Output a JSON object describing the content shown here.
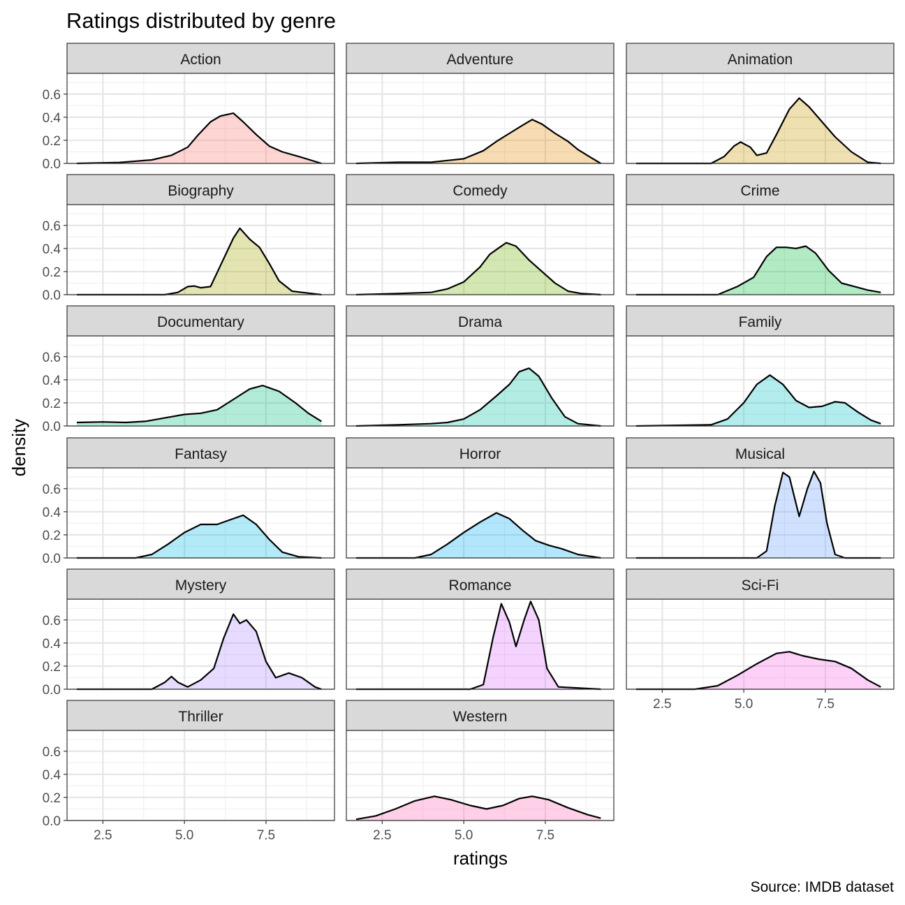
{
  "chart_data": {
    "type": "area",
    "title": "Ratings distributed by genre",
    "xlabel": "ratings",
    "ylabel": "density",
    "caption": "Source: IMDB dataset",
    "xlim": [
      1.4,
      9.6
    ],
    "ylim": [
      0,
      0.78
    ],
    "x_ticks": [
      2.5,
      5.0,
      7.5
    ],
    "x_tick_labels": [
      "2.5",
      "5.0",
      "7.5"
    ],
    "y_ticks": [
      0.0,
      0.2,
      0.4,
      0.6
    ],
    "y_tick_labels": [
      "0.0",
      "0.2",
      "0.4",
      "0.6"
    ],
    "grid": true,
    "facets": [
      {
        "label": "Action",
        "fill": "#F8766D",
        "points": [
          [
            1.7,
            0.0
          ],
          [
            3.0,
            0.008
          ],
          [
            4.0,
            0.03
          ],
          [
            4.6,
            0.07
          ],
          [
            5.1,
            0.14
          ],
          [
            5.4,
            0.24
          ],
          [
            5.8,
            0.36
          ],
          [
            6.1,
            0.41
          ],
          [
            6.5,
            0.435
          ],
          [
            6.8,
            0.36
          ],
          [
            7.2,
            0.25
          ],
          [
            7.6,
            0.15
          ],
          [
            8.0,
            0.1
          ],
          [
            8.5,
            0.06
          ],
          [
            9.2,
            0.0
          ]
        ]
      },
      {
        "label": "Adventure",
        "fill": "#E58700",
        "points": [
          [
            1.7,
            0.0
          ],
          [
            3.0,
            0.01
          ],
          [
            4.0,
            0.01
          ],
          [
            5.0,
            0.04
          ],
          [
            5.6,
            0.11
          ],
          [
            6.0,
            0.19
          ],
          [
            6.4,
            0.26
          ],
          [
            6.8,
            0.33
          ],
          [
            7.1,
            0.38
          ],
          [
            7.4,
            0.34
          ],
          [
            7.8,
            0.26
          ],
          [
            8.2,
            0.19
          ],
          [
            8.5,
            0.12
          ],
          [
            8.9,
            0.05
          ],
          [
            9.2,
            0.0
          ]
        ]
      },
      {
        "label": "Animation",
        "fill": "#C99800",
        "points": [
          [
            1.7,
            0.0
          ],
          [
            4.0,
            0.0
          ],
          [
            4.4,
            0.06
          ],
          [
            4.7,
            0.15
          ],
          [
            4.9,
            0.185
          ],
          [
            5.2,
            0.14
          ],
          [
            5.4,
            0.07
          ],
          [
            5.7,
            0.09
          ],
          [
            6.0,
            0.25
          ],
          [
            6.4,
            0.47
          ],
          [
            6.7,
            0.565
          ],
          [
            7.0,
            0.49
          ],
          [
            7.4,
            0.36
          ],
          [
            7.8,
            0.23
          ],
          [
            8.3,
            0.1
          ],
          [
            8.8,
            0.01
          ],
          [
            9.2,
            0.0
          ]
        ]
      },
      {
        "label": "Biography",
        "fill": "#A3A500",
        "points": [
          [
            1.7,
            0.0
          ],
          [
            4.4,
            0.0
          ],
          [
            4.8,
            0.02
          ],
          [
            5.1,
            0.07
          ],
          [
            5.3,
            0.075
          ],
          [
            5.5,
            0.06
          ],
          [
            5.8,
            0.07
          ],
          [
            6.1,
            0.25
          ],
          [
            6.5,
            0.49
          ],
          [
            6.7,
            0.575
          ],
          [
            7.0,
            0.48
          ],
          [
            7.3,
            0.41
          ],
          [
            7.6,
            0.27
          ],
          [
            7.9,
            0.12
          ],
          [
            8.3,
            0.03
          ],
          [
            8.6,
            0.02
          ],
          [
            9.2,
            0.0
          ]
        ]
      },
      {
        "label": "Comedy",
        "fill": "#6BB100",
        "points": [
          [
            1.7,
            0.0
          ],
          [
            3.0,
            0.01
          ],
          [
            4.0,
            0.02
          ],
          [
            4.5,
            0.05
          ],
          [
            5.0,
            0.11
          ],
          [
            5.5,
            0.24
          ],
          [
            5.8,
            0.35
          ],
          [
            6.1,
            0.41
          ],
          [
            6.3,
            0.45
          ],
          [
            6.6,
            0.42
          ],
          [
            7.0,
            0.3
          ],
          [
            7.4,
            0.2
          ],
          [
            7.8,
            0.1
          ],
          [
            8.2,
            0.03
          ],
          [
            8.6,
            0.01
          ],
          [
            9.2,
            0.0
          ]
        ]
      },
      {
        "label": "Crime",
        "fill": "#00BA38",
        "points": [
          [
            1.7,
            0.0
          ],
          [
            4.2,
            0.0
          ],
          [
            4.8,
            0.07
          ],
          [
            5.3,
            0.15
          ],
          [
            5.7,
            0.33
          ],
          [
            6.0,
            0.41
          ],
          [
            6.3,
            0.41
          ],
          [
            6.6,
            0.4
          ],
          [
            6.9,
            0.42
          ],
          [
            7.2,
            0.36
          ],
          [
            7.6,
            0.21
          ],
          [
            8.0,
            0.1
          ],
          [
            8.4,
            0.07
          ],
          [
            8.8,
            0.04
          ],
          [
            9.2,
            0.02
          ]
        ]
      },
      {
        "label": "Documentary",
        "fill": "#00BF7D",
        "points": [
          [
            1.7,
            0.03
          ],
          [
            2.5,
            0.035
          ],
          [
            3.2,
            0.03
          ],
          [
            3.8,
            0.04
          ],
          [
            4.4,
            0.07
          ],
          [
            5.0,
            0.1
          ],
          [
            5.5,
            0.11
          ],
          [
            6.0,
            0.14
          ],
          [
            6.5,
            0.23
          ],
          [
            7.0,
            0.32
          ],
          [
            7.4,
            0.35
          ],
          [
            7.9,
            0.3
          ],
          [
            8.4,
            0.2
          ],
          [
            8.8,
            0.11
          ],
          [
            9.2,
            0.04
          ]
        ]
      },
      {
        "label": "Drama",
        "fill": "#00C1A3",
        "points": [
          [
            1.7,
            0.0
          ],
          [
            3.0,
            0.01
          ],
          [
            4.0,
            0.02
          ],
          [
            4.5,
            0.03
          ],
          [
            5.0,
            0.06
          ],
          [
            5.5,
            0.14
          ],
          [
            6.0,
            0.26
          ],
          [
            6.4,
            0.36
          ],
          [
            6.7,
            0.47
          ],
          [
            7.0,
            0.5
          ],
          [
            7.3,
            0.43
          ],
          [
            7.7,
            0.24
          ],
          [
            8.1,
            0.08
          ],
          [
            8.5,
            0.02
          ],
          [
            9.2,
            0.0
          ]
        ]
      },
      {
        "label": "Family",
        "fill": "#00BFC4",
        "points": [
          [
            1.7,
            0.0
          ],
          [
            4.0,
            0.01
          ],
          [
            4.5,
            0.06
          ],
          [
            5.0,
            0.2
          ],
          [
            5.4,
            0.36
          ],
          [
            5.8,
            0.44
          ],
          [
            6.2,
            0.36
          ],
          [
            6.6,
            0.22
          ],
          [
            7.0,
            0.16
          ],
          [
            7.4,
            0.17
          ],
          [
            7.8,
            0.21
          ],
          [
            8.1,
            0.2
          ],
          [
            8.5,
            0.12
          ],
          [
            8.9,
            0.05
          ],
          [
            9.2,
            0.02
          ]
        ]
      },
      {
        "label": "Fantasy",
        "fill": "#00B9E3",
        "points": [
          [
            1.7,
            0.0
          ],
          [
            3.5,
            0.0
          ],
          [
            4.0,
            0.03
          ],
          [
            4.5,
            0.12
          ],
          [
            5.0,
            0.22
          ],
          [
            5.5,
            0.29
          ],
          [
            6.0,
            0.29
          ],
          [
            6.4,
            0.33
          ],
          [
            6.8,
            0.37
          ],
          [
            7.2,
            0.29
          ],
          [
            7.6,
            0.16
          ],
          [
            8.0,
            0.05
          ],
          [
            8.5,
            0.01
          ],
          [
            9.2,
            0.0
          ]
        ]
      },
      {
        "label": "Horror",
        "fill": "#00ADFA",
        "points": [
          [
            1.7,
            0.0
          ],
          [
            3.5,
            0.0
          ],
          [
            4.0,
            0.03
          ],
          [
            4.5,
            0.12
          ],
          [
            5.0,
            0.22
          ],
          [
            5.5,
            0.31
          ],
          [
            6.0,
            0.39
          ],
          [
            6.4,
            0.34
          ],
          [
            6.8,
            0.24
          ],
          [
            7.2,
            0.15
          ],
          [
            7.6,
            0.11
          ],
          [
            8.0,
            0.08
          ],
          [
            8.5,
            0.03
          ],
          [
            9.2,
            0.0
          ]
        ]
      },
      {
        "label": "Musical",
        "fill": "#619CFF",
        "points": [
          [
            1.7,
            0.0
          ],
          [
            5.4,
            0.0
          ],
          [
            5.7,
            0.06
          ],
          [
            5.95,
            0.45
          ],
          [
            6.2,
            0.74
          ],
          [
            6.4,
            0.7
          ],
          [
            6.7,
            0.36
          ],
          [
            6.95,
            0.6
          ],
          [
            7.15,
            0.75
          ],
          [
            7.35,
            0.65
          ],
          [
            7.55,
            0.3
          ],
          [
            7.8,
            0.03
          ],
          [
            8.1,
            0.0
          ],
          [
            9.2,
            0.0
          ]
        ]
      },
      {
        "label": "Mystery",
        "fill": "#AE87FF",
        "points": [
          [
            1.7,
            0.0
          ],
          [
            4.0,
            0.0
          ],
          [
            4.4,
            0.06
          ],
          [
            4.6,
            0.11
          ],
          [
            4.8,
            0.06
          ],
          [
            5.1,
            0.02
          ],
          [
            5.5,
            0.08
          ],
          [
            5.9,
            0.18
          ],
          [
            6.2,
            0.44
          ],
          [
            6.5,
            0.65
          ],
          [
            6.7,
            0.57
          ],
          [
            6.9,
            0.6
          ],
          [
            7.2,
            0.5
          ],
          [
            7.5,
            0.24
          ],
          [
            7.8,
            0.1
          ],
          [
            8.2,
            0.14
          ],
          [
            8.6,
            0.1
          ],
          [
            9.0,
            0.02
          ],
          [
            9.2,
            0.0
          ]
        ]
      },
      {
        "label": "Romance",
        "fill": "#DB72FB",
        "points": [
          [
            1.7,
            0.0
          ],
          [
            5.2,
            0.0
          ],
          [
            5.6,
            0.04
          ],
          [
            5.9,
            0.45
          ],
          [
            6.15,
            0.74
          ],
          [
            6.4,
            0.58
          ],
          [
            6.6,
            0.37
          ],
          [
            6.85,
            0.6
          ],
          [
            7.05,
            0.76
          ],
          [
            7.3,
            0.6
          ],
          [
            7.55,
            0.18
          ],
          [
            7.9,
            0.02
          ],
          [
            9.2,
            0.0
          ]
        ]
      },
      {
        "label": "Sci-Fi",
        "fill": "#F564E3",
        "points": [
          [
            1.7,
            0.0
          ],
          [
            3.5,
            0.0
          ],
          [
            4.2,
            0.03
          ],
          [
            4.8,
            0.12
          ],
          [
            5.4,
            0.22
          ],
          [
            6.0,
            0.31
          ],
          [
            6.4,
            0.325
          ],
          [
            6.8,
            0.29
          ],
          [
            7.3,
            0.26
          ],
          [
            7.8,
            0.24
          ],
          [
            8.3,
            0.18
          ],
          [
            8.8,
            0.08
          ],
          [
            9.2,
            0.02
          ]
        ]
      },
      {
        "label": "Thriller",
        "fill": "#FF64B0",
        "points": []
      },
      {
        "label": "Western",
        "fill": "#FF64B0",
        "points": [
          [
            1.7,
            0.01
          ],
          [
            2.3,
            0.04
          ],
          [
            2.9,
            0.1
          ],
          [
            3.5,
            0.17
          ],
          [
            4.1,
            0.21
          ],
          [
            4.6,
            0.18
          ],
          [
            5.2,
            0.13
          ],
          [
            5.7,
            0.1
          ],
          [
            6.2,
            0.13
          ],
          [
            6.7,
            0.19
          ],
          [
            7.1,
            0.21
          ],
          [
            7.6,
            0.18
          ],
          [
            8.2,
            0.11
          ],
          [
            8.8,
            0.05
          ],
          [
            9.2,
            0.02
          ]
        ]
      }
    ]
  }
}
